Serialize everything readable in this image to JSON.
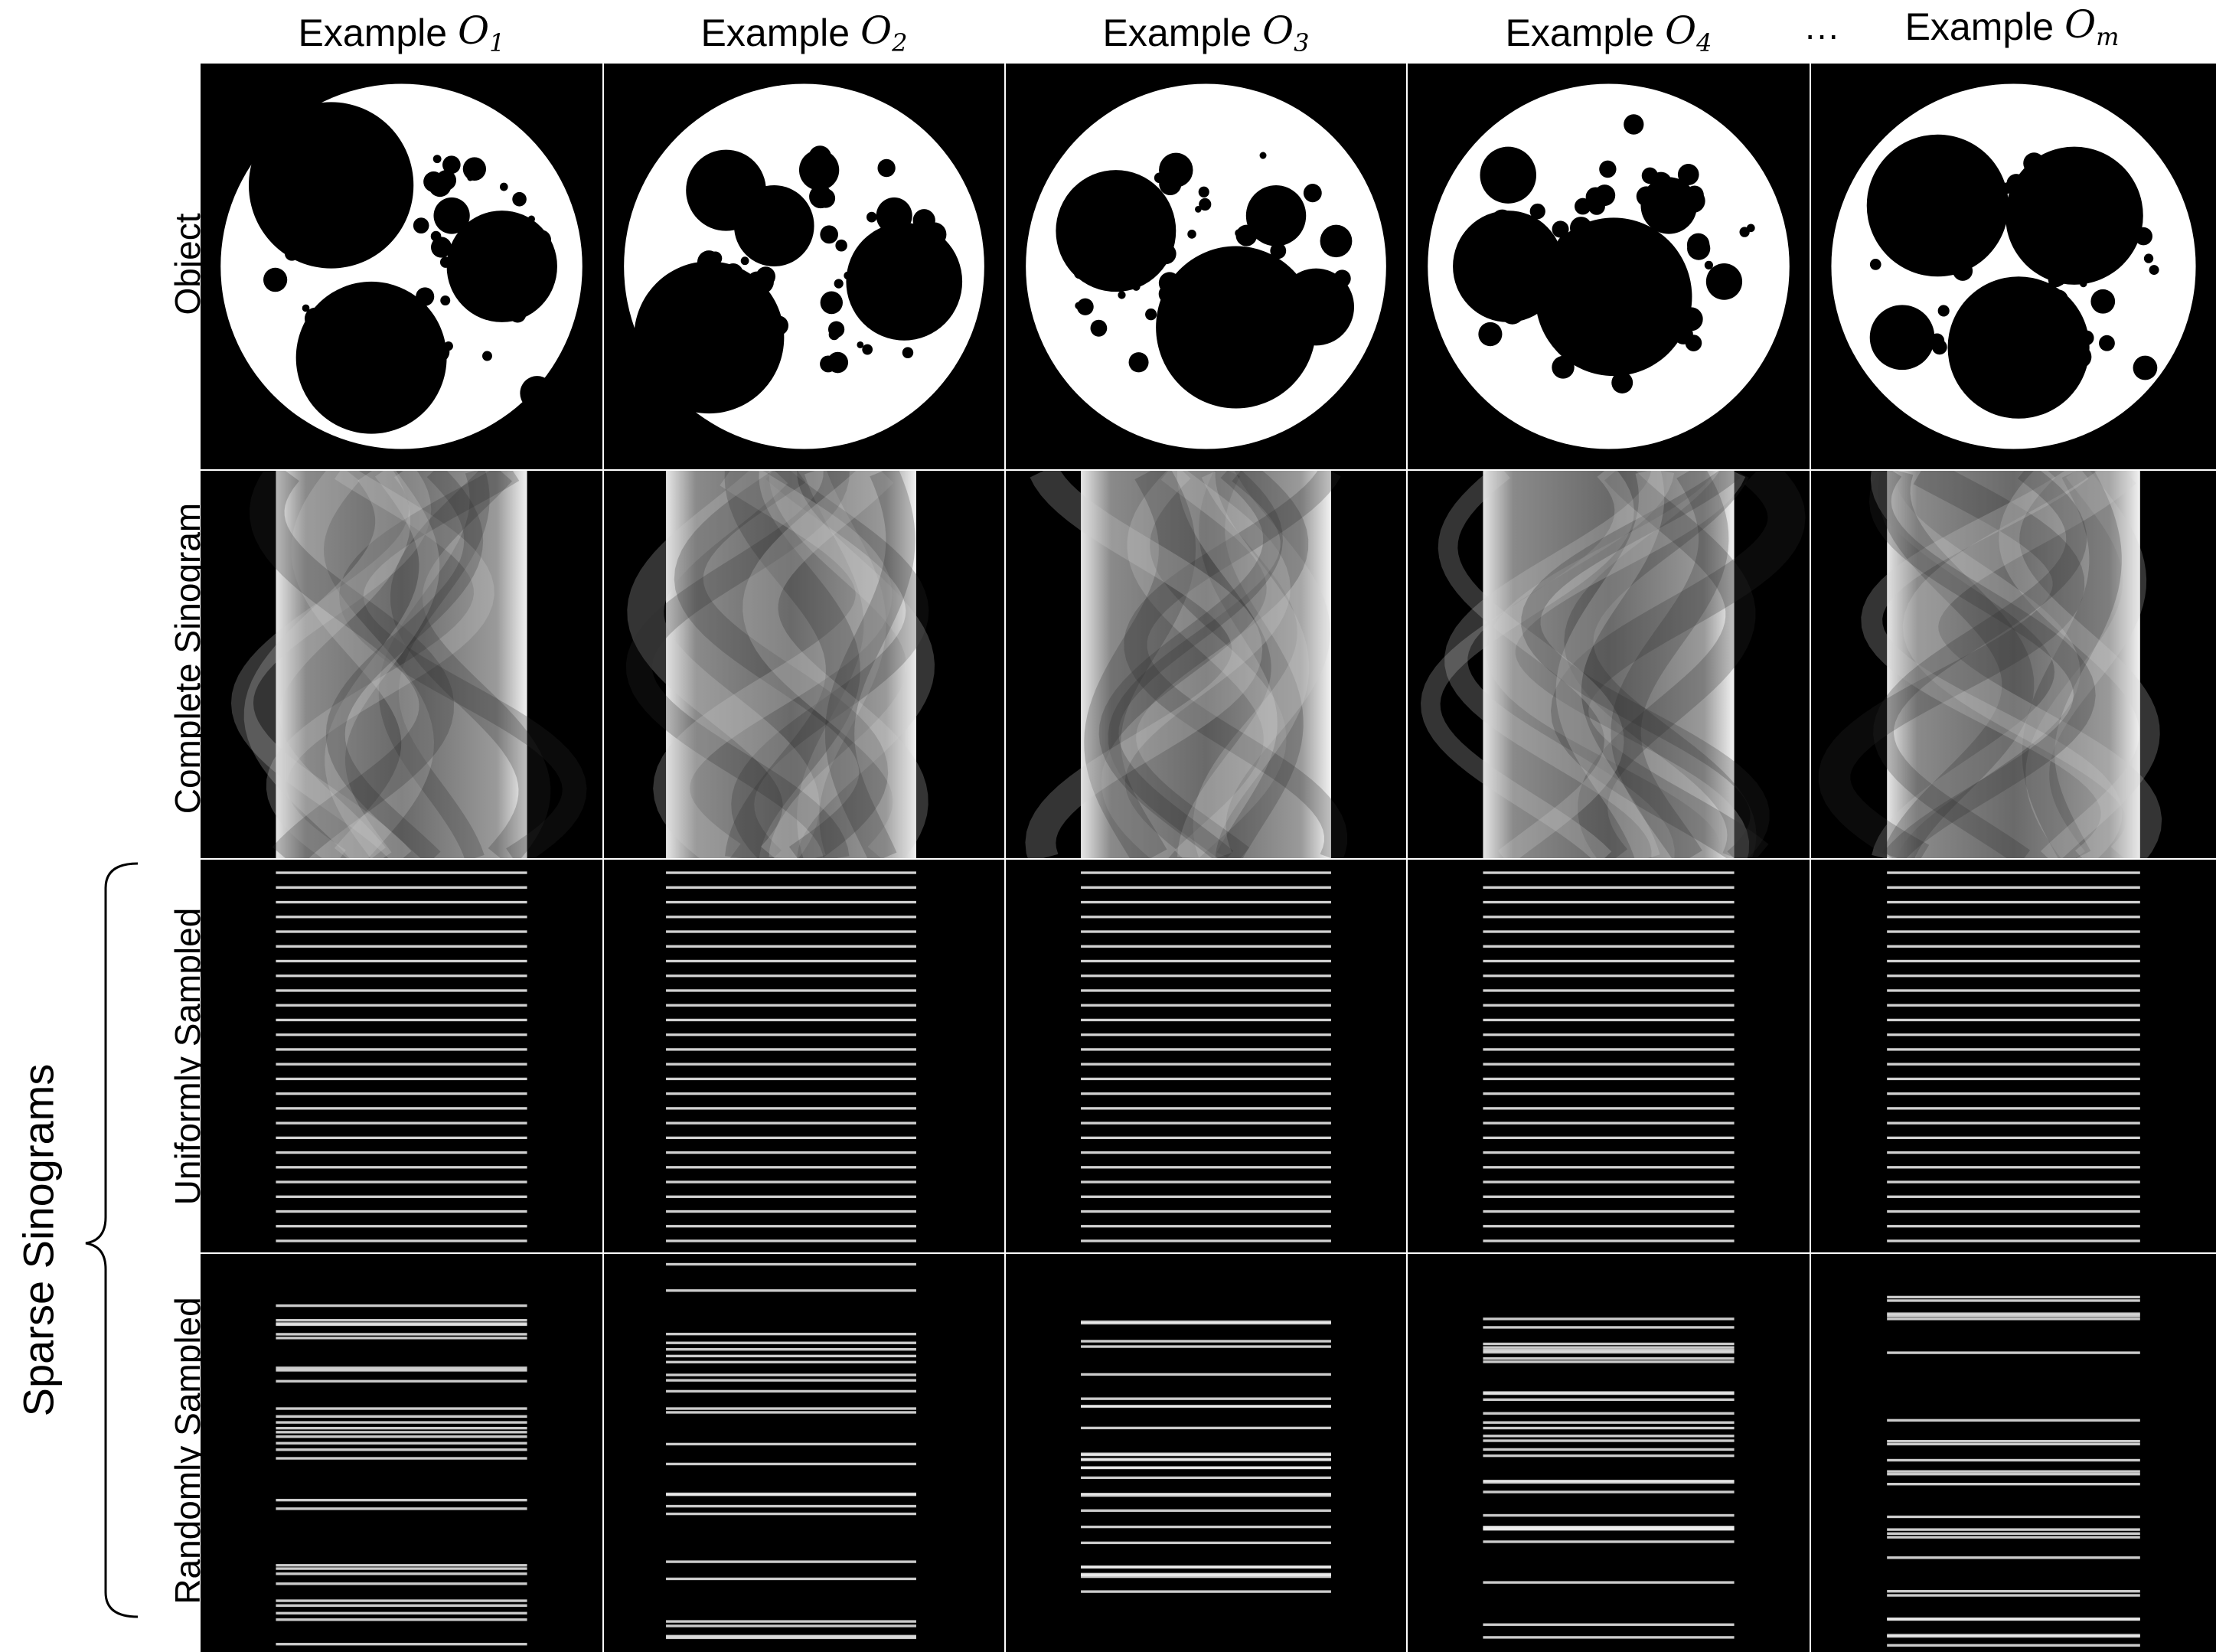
{
  "columns": [
    {
      "prefix": "Example",
      "symbol": "O",
      "subscript": "1"
    },
    {
      "prefix": "Example",
      "symbol": "O",
      "subscript": "2"
    },
    {
      "prefix": "Example",
      "symbol": "O",
      "subscript": "3"
    },
    {
      "prefix": "Example",
      "symbol": "O",
      "subscript": "4"
    },
    {
      "prefix": "Example",
      "symbol": "O",
      "subscript": "m"
    }
  ],
  "ellipsis": "···",
  "rows": [
    {
      "label": "Object"
    },
    {
      "label": "Complete Sinogram"
    },
    {
      "label": "Uniformly Sampled"
    },
    {
      "label": "Randomly Sampled"
    }
  ],
  "group_label": "Sparse Sinograms",
  "colors": {
    "background": "#000000",
    "foreground": "#ffffff",
    "grid_line": "#ffffff"
  }
}
